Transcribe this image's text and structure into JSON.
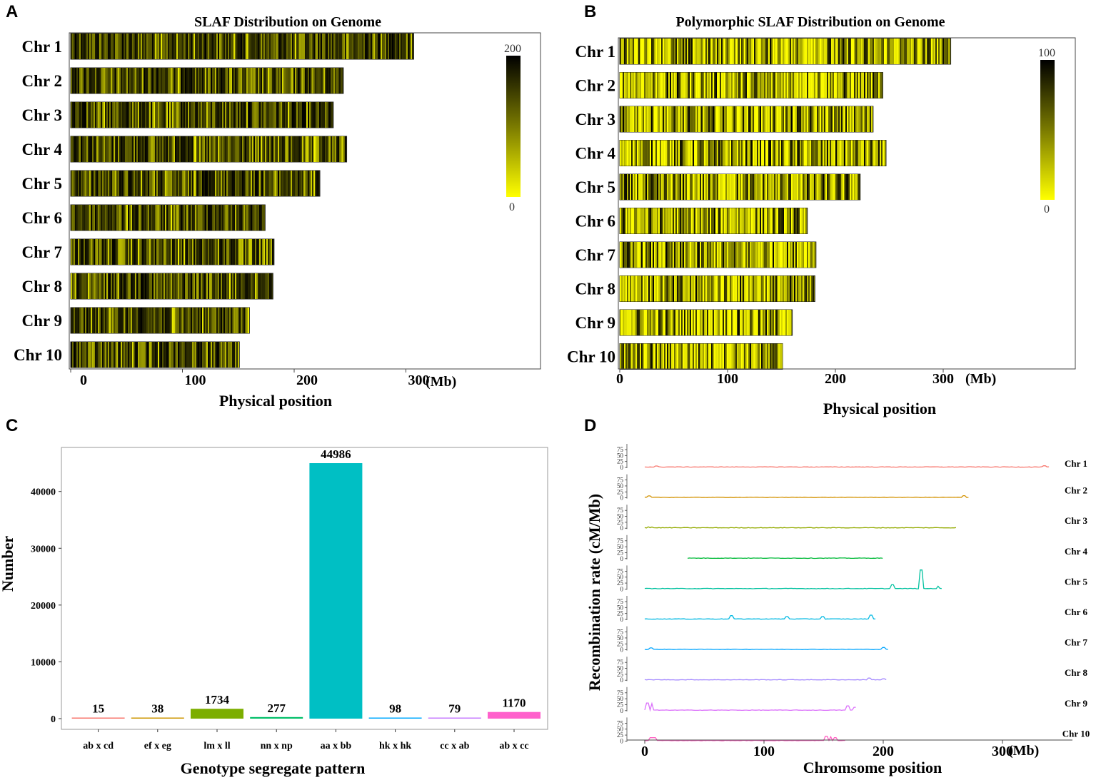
{
  "panels": {
    "A": "A",
    "B": "B",
    "C": "C",
    "D": "D"
  },
  "chart_data": [
    {
      "type": "heatmap",
      "title": "SLAF Distribution on Genome",
      "xlabel": "Physical position",
      "x_unit_label": "(Mb)",
      "x_ticks": [
        0,
        100,
        200,
        300
      ],
      "xlim": [
        0,
        420
      ],
      "chromosomes": [
        {
          "name": "Chr 1",
          "length": 307
        },
        {
          "name": "Chr 2",
          "length": 244
        },
        {
          "name": "Chr 3",
          "length": 235
        },
        {
          "name": "Chr 4",
          "length": 247
        },
        {
          "name": "Chr 5",
          "length": 223
        },
        {
          "name": "Chr 6",
          "length": 174
        },
        {
          "name": "Chr 7",
          "length": 182
        },
        {
          "name": "Chr 8",
          "length": 181
        },
        {
          "name": "Chr 9",
          "length": 160
        },
        {
          "name": "Chr 10",
          "length": 151
        }
      ],
      "colorbar": {
        "min": 0,
        "max": 200,
        "low_color": "#ffff00",
        "high_color": "#000000"
      }
    },
    {
      "type": "heatmap",
      "title": "Polymorphic SLAF Distribution on Genome",
      "xlabel": "Physical position",
      "x_unit_label": "(Mb)",
      "x_ticks": [
        0,
        100,
        200,
        300
      ],
      "xlim": [
        0,
        420
      ],
      "chromosomes": [
        {
          "name": "Chr 1",
          "length": 307
        },
        {
          "name": "Chr 2",
          "length": 244
        },
        {
          "name": "Chr 3",
          "length": 235
        },
        {
          "name": "Chr 4",
          "length": 247
        },
        {
          "name": "Chr 5",
          "length": 223
        },
        {
          "name": "Chr 6",
          "length": 174
        },
        {
          "name": "Chr 7",
          "length": 182
        },
        {
          "name": "Chr 8",
          "length": 181
        },
        {
          "name": "Chr 9",
          "length": 160
        },
        {
          "name": "Chr 10",
          "length": 151
        }
      ],
      "colorbar": {
        "min": 0,
        "max": 100,
        "low_color": "#ffff00",
        "high_color": "#000000"
      }
    },
    {
      "type": "bar",
      "xlabel": "Genotype segregate pattern",
      "ylabel": "Number",
      "ylim": [
        0,
        47000
      ],
      "y_ticks": [
        0,
        10000,
        20000,
        30000,
        40000
      ],
      "categories": [
        "ab x cd",
        "ef x eg",
        "lm x ll",
        "nn x np",
        "aa x bb",
        "hk x hk",
        "cc x ab",
        "ab x cc"
      ],
      "values": [
        15,
        38,
        1734,
        277,
        44986,
        98,
        79,
        1170
      ],
      "colors": [
        "#F8766D",
        "#CD9600",
        "#7CAE00",
        "#00BE67",
        "#00BFC4",
        "#00A9FF",
        "#C77CFF",
        "#FF61CC"
      ]
    },
    {
      "type": "line",
      "xlabel": "Chromsome position",
      "x_unit_label": "(Mb)",
      "ylabel": "Recombination rate (cM/Mb)",
      "x_ticks": [
        0,
        100,
        200,
        300
      ],
      "xlim": [
        -15,
        360
      ],
      "y_ticks": [
        0,
        25,
        50,
        75
      ],
      "series": [
        {
          "name": "Chr 1",
          "start": 0,
          "end": 340,
          "color": "#F8766D",
          "spikes": [
            [
              10,
              6
            ],
            [
              335,
              7
            ]
          ]
        },
        {
          "name": "Chr 2",
          "start": 0,
          "end": 272,
          "color": "#D39200",
          "spikes": [
            [
              4,
              8
            ],
            [
              268,
              9
            ]
          ]
        },
        {
          "name": "Chr 3",
          "start": 0,
          "end": 262,
          "color": "#93AA00",
          "spikes": [
            [
              3,
              6
            ],
            [
              6,
              5
            ]
          ]
        },
        {
          "name": "Chr 4",
          "start": 36,
          "end": 200,
          "color": "#00BA38",
          "spikes": []
        },
        {
          "name": "Chr 5",
          "start": 0,
          "end": 250,
          "color": "#00C19F",
          "spikes": [
            [
              208,
              18
            ],
            [
              232,
              80
            ],
            [
              246,
              12
            ]
          ]
        },
        {
          "name": "Chr 6",
          "start": 0,
          "end": 194,
          "color": "#00B9E3",
          "spikes": [
            [
              73,
              16
            ],
            [
              119,
              12
            ],
            [
              149,
              12
            ],
            [
              190,
              18
            ]
          ]
        },
        {
          "name": "Chr 7",
          "start": 0,
          "end": 204,
          "color": "#00A5FF",
          "spikes": [
            [
              5,
              8
            ],
            [
              200,
              10
            ]
          ]
        },
        {
          "name": "Chr 8",
          "start": 0,
          "end": 203,
          "color": "#A58AFF",
          "spikes": [
            [
              188,
              9
            ],
            [
              200,
              6
            ]
          ]
        },
        {
          "name": "Chr 9",
          "start": 0,
          "end": 178,
          "color": "#DB72FB",
          "spikes": [
            [
              2,
              32
            ],
            [
              6,
              30
            ],
            [
              170,
              20
            ],
            [
              176,
              14
            ]
          ]
        },
        {
          "name": "Chr 10",
          "start": 0,
          "end": 168,
          "color": "#FF61C3",
          "spikes": [
            [
              5,
              14
            ],
            [
              8,
              14
            ],
            [
              152,
              20
            ],
            [
              156,
              18
            ],
            [
              160,
              14
            ]
          ]
        }
      ]
    }
  ]
}
